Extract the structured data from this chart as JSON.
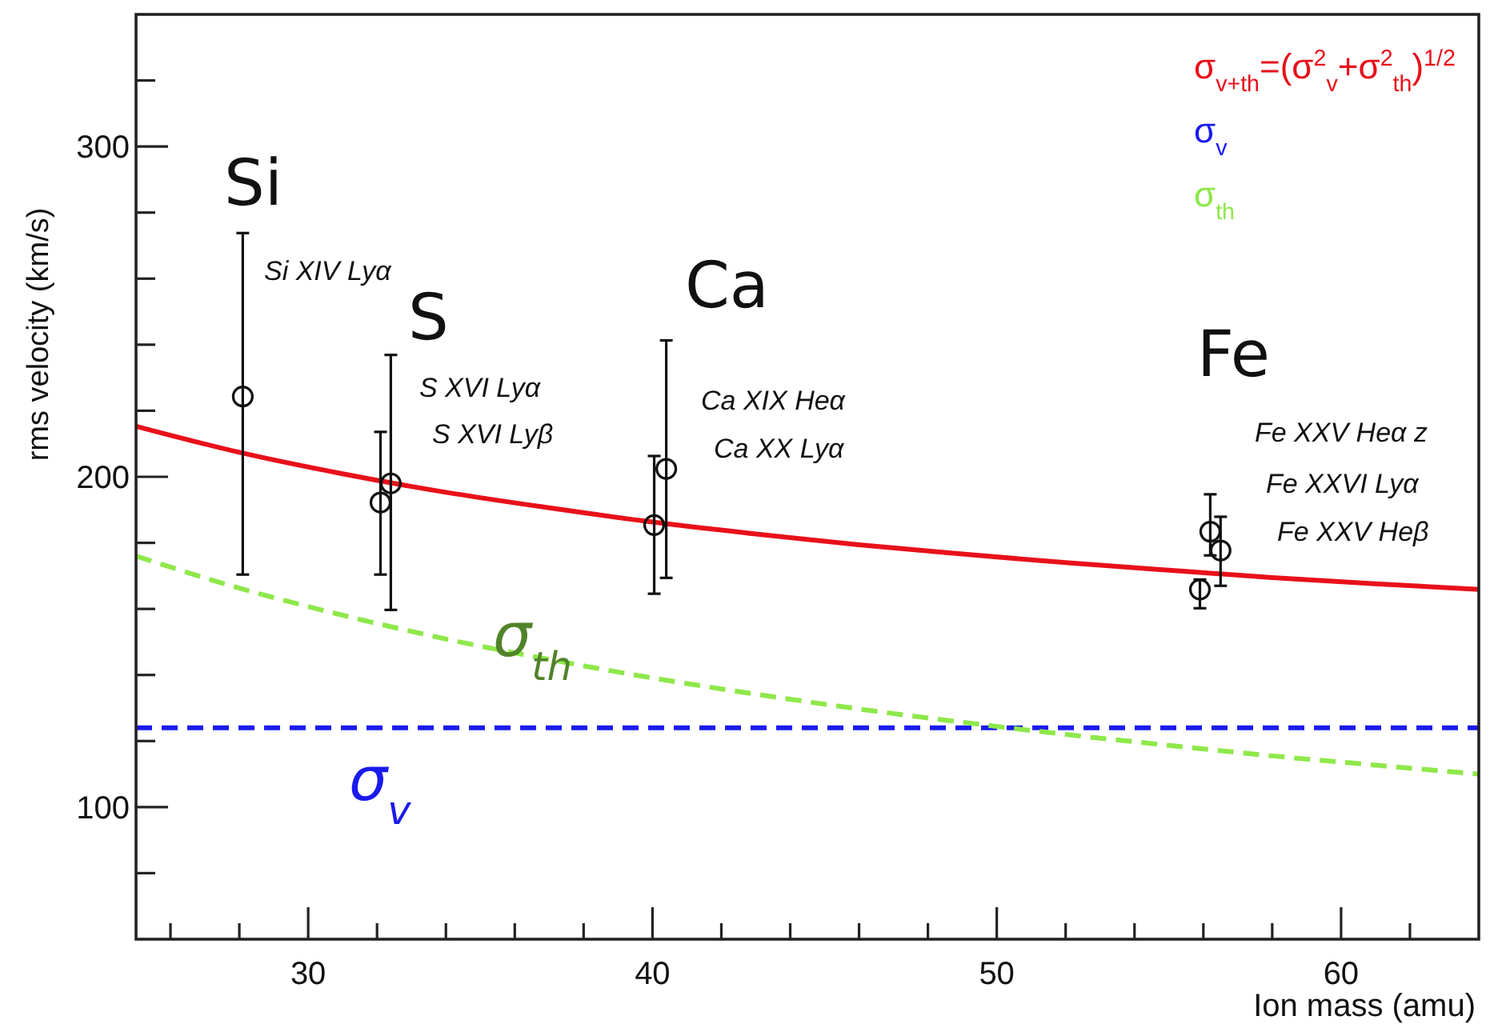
{
  "chart_data": {
    "type": "line",
    "xlabel": "Ion mass (amu)",
    "ylabel": "rms velocity (km/s)",
    "xlim": [
      25,
      64
    ],
    "ylim": [
      60,
      340
    ],
    "xticks": [
      {
        "value": 26,
        "label": null
      },
      {
        "value": 28,
        "label": null
      },
      30,
      {
        "value": 32,
        "label": null
      },
      {
        "value": 34,
        "label": null
      },
      {
        "value": 36,
        "label": null
      },
      {
        "value": 38,
        "label": null
      },
      40,
      {
        "value": 42,
        "label": null
      },
      {
        "value": 44,
        "label": null
      },
      {
        "value": 46,
        "label": null
      },
      {
        "value": 48,
        "label": null
      },
      50,
      {
        "value": 52,
        "label": null
      },
      {
        "value": 54,
        "label": null
      },
      {
        "value": 56,
        "label": null
      },
      {
        "value": 58,
        "label": null
      },
      60,
      {
        "value": 62,
        "label": null
      }
    ],
    "yticks": [
      {
        "value": 80,
        "label": null
      },
      100,
      {
        "value": 120,
        "label": null
      },
      {
        "value": 140,
        "label": null
      },
      {
        "value": 160,
        "label": null
      },
      {
        "value": 180,
        "label": null
      },
      200,
      {
        "value": 220,
        "label": null
      },
      {
        "value": 240,
        "label": null
      },
      {
        "value": 260,
        "label": null
      },
      {
        "value": 280,
        "label": null
      },
      300,
      {
        "value": 320,
        "label": null
      }
    ],
    "grid": false,
    "legend": "top right",
    "series": [
      {
        "name": "σ$_{v+th}$=(σ$^{2}$$_{v}$+σ$^{2}$$_{th}$)$^{1/2}$",
        "color": "#e8101a",
        "line_style": "solid",
        "x": [
          25,
          28,
          31,
          34,
          37,
          40,
          43,
          46,
          49,
          52,
          55,
          58,
          61,
          64
        ],
        "values": [
          215.3,
          207.4,
          200.9,
          195.3,
          190.6,
          186.3,
          182.7,
          179.4,
          176.6,
          174.0,
          171.7,
          169.5,
          167.6,
          165.9
        ]
      },
      {
        "name": "σ$_{v}$",
        "color": "#1a1aee",
        "line_style": "dashed",
        "x": [
          25,
          64
        ],
        "values": [
          124,
          124
        ]
      },
      {
        "name": "σ$_{th}$",
        "color": "#8ee84a",
        "line_style": "dashed",
        "x": [
          25,
          28,
          31,
          34,
          37,
          40,
          43,
          46,
          49,
          52,
          55,
          58,
          61,
          64
        ],
        "values": [
          176,
          166.3,
          158.1,
          150.9,
          144.7,
          139.1,
          134.2,
          129.7,
          125.7,
          122.0,
          118.7,
          115.5,
          112.7,
          110
        ]
      },
      {
        "color": "#111111",
        "type": "scatter",
        "marker": "circle",
        "x": [
          28.1,
          32.1,
          32.4,
          40.05,
          40.4,
          55.9,
          56.2,
          56.5
        ],
        "values": [
          224.3,
          192.2,
          198,
          185.4,
          202.4,
          165.9,
          183.4,
          177.7
        ],
        "errors": [
          [
            170.4,
            273.8
          ],
          [
            170.4,
            213.6
          ],
          [
            159.7,
            236.9
          ],
          [
            164.6,
            206.3
          ],
          [
            169.4,
            241.3
          ],
          [
            160.2,
            168.9
          ],
          [
            176.2,
            194.7
          ],
          [
            167,
            187.9
          ]
        ]
      }
    ],
    "annotations": [
      "Si",
      "Si XIV Lyα",
      "S",
      "S XVI Lyα",
      "S XVI Lyβ",
      "Ca",
      "Ca XIX Heα",
      "Ca XX Lyα",
      "Fe",
      "Fe XXV Heα z",
      "Fe XXVI Lyα",
      "Fe XXV Heβ",
      "σ$_{th}$",
      "σ$_{v}$"
    ]
  }
}
